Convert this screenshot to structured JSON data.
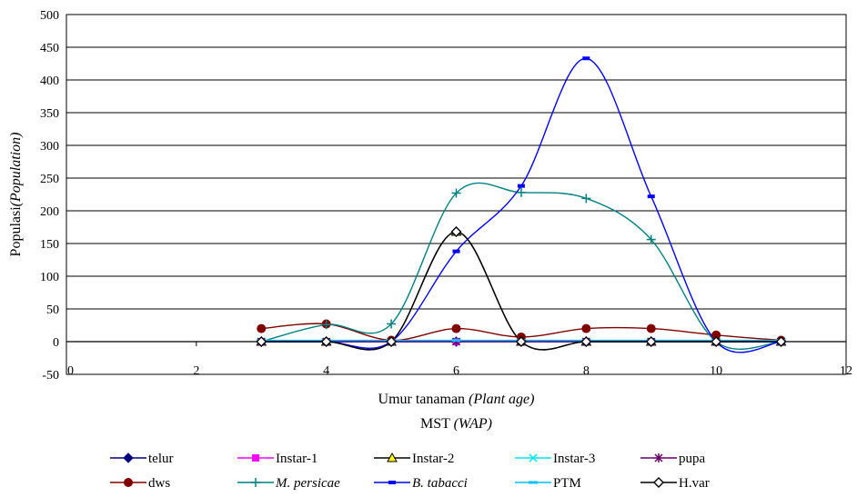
{
  "chart_data": {
    "type": "line",
    "smooth": true,
    "ylabel": {
      "text": "Populasi",
      "italic": "(Population)"
    },
    "xlabel": {
      "line1": {
        "text": "Umur tanaman ",
        "italic": "(Plant age)"
      },
      "line2": {
        "text": "MST ",
        "italic": "(WAP)"
      }
    },
    "xlim": [
      0,
      12
    ],
    "ylim": [
      -50,
      500
    ],
    "xticks": [
      "0",
      "2",
      "4",
      "6",
      "8",
      "10",
      "12"
    ],
    "yticks": [
      "500",
      "450",
      "400",
      "350",
      "300",
      "250",
      "200",
      "150",
      "100",
      "50",
      "0",
      "-50"
    ],
    "grid": true,
    "legend_position": "bottom",
    "x": [
      3,
      4,
      5,
      6,
      7,
      8,
      9,
      10,
      11
    ],
    "series": [
      {
        "name": "telur",
        "italic": false,
        "color": "#000080",
        "marker": "diamond",
        "values": [
          0,
          0,
          0,
          0,
          0,
          0,
          0,
          0,
          0
        ]
      },
      {
        "name": "Instar-1",
        "italic": false,
        "color": "#ff00ff",
        "marker": "square",
        "values": [
          0,
          0,
          0,
          0,
          0,
          0,
          0,
          0,
          0
        ]
      },
      {
        "name": "Instar-2",
        "italic": false,
        "color": "#000000",
        "marker": "triangle",
        "values": [
          0,
          0,
          0,
          168,
          0,
          0,
          0,
          0,
          0
        ]
      },
      {
        "name": "Instar-3",
        "italic": false,
        "color": "#00e5ee",
        "marker": "x",
        "values": [
          0,
          0,
          0,
          0,
          0,
          0,
          0,
          0,
          0
        ]
      },
      {
        "name": "pupa",
        "italic": false,
        "color": "#660066",
        "marker": "star",
        "values": [
          0,
          0,
          0,
          0,
          0,
          0,
          0,
          0,
          0
        ]
      },
      {
        "name": "dws",
        "italic": false,
        "color": "#800000",
        "marker": "circle",
        "values": [
          20,
          27,
          2,
          20,
          7,
          20,
          20,
          10,
          2
        ]
      },
      {
        "name": "M. persicae",
        "italic": true,
        "color": "#008080",
        "marker": "plus",
        "values": [
          0,
          26,
          27,
          227,
          228,
          219,
          156,
          0,
          0
        ]
      },
      {
        "name": "B. tabacci",
        "italic": true,
        "color": "#0000ff",
        "marker": "dash",
        "values": [
          0,
          0,
          0,
          138,
          238,
          433,
          222,
          0,
          0
        ]
      },
      {
        "name": "PTM",
        "italic": false,
        "color": "#00bfff",
        "marker": "line",
        "values": [
          2,
          2,
          2,
          2,
          2,
          2,
          2,
          2,
          2
        ]
      },
      {
        "name": "H.var",
        "italic": false,
        "color": "#000000",
        "marker": "open-diamond",
        "values": [
          0,
          0,
          0,
          168,
          0,
          0,
          0,
          0,
          0
        ]
      }
    ]
  }
}
